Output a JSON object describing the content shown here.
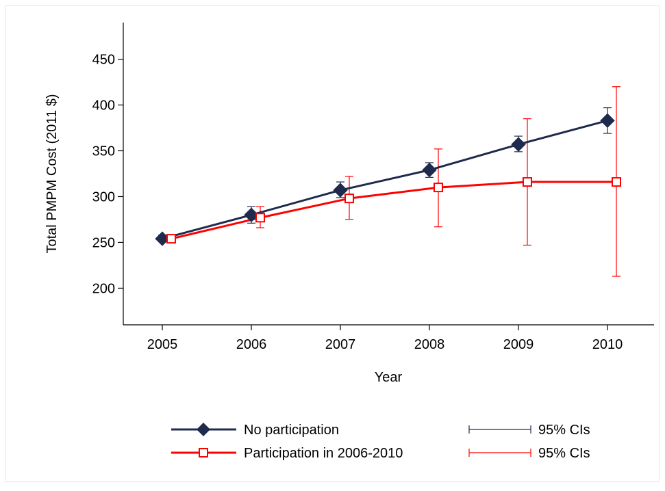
{
  "chart_data": {
    "type": "line",
    "title": "",
    "xlabel": "Year",
    "ylabel": "Total PMPM Cost (2011 $)",
    "x": [
      "2005",
      "2006",
      "2007",
      "2008",
      "2009",
      "2010"
    ],
    "ylim": [
      160,
      490
    ],
    "yticks": [
      200,
      250,
      300,
      350,
      400,
      450
    ],
    "grid": false,
    "legend_position": "bottom",
    "series": [
      {
        "name": "No participation",
        "color": "#1f2b4d",
        "marker": "diamond",
        "values": [
          254,
          280,
          307,
          329,
          357,
          383
        ],
        "ci_low": [
          251,
          271,
          299,
          321,
          349,
          369
        ],
        "ci_high": [
          258,
          289,
          316,
          337,
          366,
          397
        ],
        "ci_label": "95% CIs"
      },
      {
        "name": "Participation in 2006-2010",
        "color": "#ff0000",
        "marker": "hollow-square",
        "values": [
          254,
          277,
          298,
          310,
          316,
          316
        ],
        "ci_low": [
          252,
          266,
          275,
          267,
          247,
          213
        ],
        "ci_high": [
          256,
          289,
          322,
          352,
          385,
          420
        ],
        "ci_label": "95% CIs"
      }
    ]
  }
}
